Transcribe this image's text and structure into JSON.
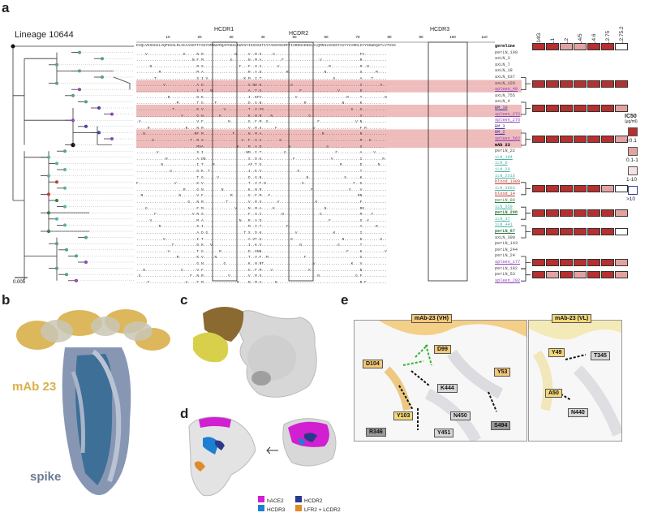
{
  "panels": {
    "a": "a",
    "b": "b",
    "c": "c",
    "d": "d",
    "e": "e"
  },
  "panel_a": {
    "lineage_title": "Lineage 10644",
    "cdr_labels": [
      "HCDR1",
      "HCDR2",
      "HCDR3"
    ],
    "scale_bar_label": "0.005",
    "germline_sequence": "EVQLVESGGGLVQPGGSLRLSCAASGFTFSSYSMNWVRQAPGKGLEWVSYISSSSSTIYYADSVKGRFTISRDNAKNSLYLQMNSLRAEDTAVYYCARDLGYYDGWGQGTLVTVSS",
    "clones": [
      {
        "name": "germline",
        "color": "#000000",
        "bold": true
      },
      {
        "name": "perLN_199",
        "color": "#444444"
      },
      {
        "name": "axLN_3",
        "color": "#444444"
      },
      {
        "name": "axLN_7",
        "color": "#444444"
      },
      {
        "name": "axLN_18",
        "color": "#444444"
      },
      {
        "name": "axLN_637",
        "color": "#444444"
      },
      {
        "name": "axLN_120",
        "color": "#444444"
      },
      {
        "name": "spleen_49",
        "color": "#8a3fb8"
      },
      {
        "name": "axLN_755",
        "color": "#444444"
      },
      {
        "name": "axLN_4",
        "color": "#444444"
      },
      {
        "name": "BM_10",
        "color": "#3a3aa0"
      },
      {
        "name": "spleen_272",
        "color": "#8a3fb8"
      },
      {
        "name": "spleen_276",
        "color": "#8a3fb8"
      },
      {
        "name": "BM_3",
        "color": "#3a3aa0"
      },
      {
        "name": "BM_2",
        "color": "#3a3aa0"
      },
      {
        "name": "spleen_562",
        "color": "#8a3fb8"
      },
      {
        "name": "mAb 23",
        "color": "#000000",
        "bold": true
      },
      {
        "name": "perLN_22",
        "color": "#444444"
      },
      {
        "name": "iLN_194",
        "color": "#4fb3a3"
      },
      {
        "name": "iLN_6",
        "color": "#4fb3a3"
      },
      {
        "name": "iLN_20",
        "color": "#4fb3a3"
      },
      {
        "name": "iLN_2316",
        "color": "#4fb3a3"
      },
      {
        "name": "blood_1089",
        "color": "#c0392b"
      },
      {
        "name": "iLN_3683",
        "color": "#4fb3a3"
      },
      {
        "name": "blood_14",
        "color": "#c0392b"
      },
      {
        "name": "perLN_80",
        "color": "#2c7a3c"
      },
      {
        "name": "iLN_659",
        "color": "#4fb3a3"
      },
      {
        "name": "perLN_298",
        "color": "#2c7a3c",
        "bold": true
      },
      {
        "name": "iLN_37",
        "color": "#4fb3a3"
      },
      {
        "name": "iLN_441",
        "color": "#4fb3a3"
      },
      {
        "name": "perLN_67",
        "color": "#2c7a3c",
        "bold": true
      },
      {
        "name": "axLN_300",
        "color": "#444444"
      },
      {
        "name": "perLN_143",
        "color": "#444444"
      },
      {
        "name": "perLN_244",
        "color": "#444444"
      },
      {
        "name": "perLN_24",
        "color": "#444444"
      },
      {
        "name": "spleen_177",
        "color": "#8a3fb8"
      },
      {
        "name": "perLN_182",
        "color": "#444444"
      },
      {
        "name": "perLN_53",
        "color": "#444444"
      },
      {
        "name": "spleen_292",
        "color": "#8a3fb8"
      }
    ],
    "variant_headers": [
      "D614G",
      "BA.1",
      "BA.2",
      "BA.4/5",
      "BA.4.6",
      "BA.2.75",
      "BA.2.75.2"
    ],
    "heatmap_rows": [
      {
        "name": "germline",
        "levels": [
          0,
          0,
          1,
          1,
          0,
          0,
          3
        ]
      },
      {
        "name": "axLN_120",
        "levels": [
          0,
          0,
          0,
          0,
          0,
          0,
          0
        ]
      },
      {
        "name": "BM_10",
        "levels": [
          0,
          0,
          0,
          0,
          0,
          0,
          1
        ]
      },
      {
        "name": "spleen_562",
        "levels": [
          0,
          0,
          0,
          0,
          0,
          0,
          1
        ]
      },
      {
        "name": "iLN_3683",
        "levels": [
          0,
          0,
          0,
          0,
          0,
          1,
          3
        ]
      },
      {
        "name": "perLN_298",
        "levels": [
          0,
          0,
          0,
          0,
          0,
          0,
          1
        ]
      },
      {
        "name": "perLN_67",
        "levels": [
          0,
          0,
          0,
          0,
          0,
          0,
          3
        ]
      },
      {
        "name": "spleen_177",
        "levels": [
          0,
          0,
          0,
          0,
          0,
          0,
          1
        ]
      },
      {
        "name": "perLN_53",
        "levels": [
          0,
          1,
          0,
          1,
          0,
          0,
          1
        ]
      }
    ],
    "ic50_legend": {
      "title": "IC50",
      "unit": "(µg/ml)",
      "items": [
        {
          "label": "<0.1",
          "color": "#b5302f"
        },
        {
          "label": "0.1-1",
          "color": "#e2a2a2"
        },
        {
          "label": "1-10",
          "color": "#f7e1e3"
        },
        {
          "label": ">10",
          "color": "#ffffff"
        }
      ]
    }
  },
  "panel_b": {
    "mab_label": "mAb 23",
    "spike_label": "spike"
  },
  "panel_d": {
    "legend": [
      {
        "label": "hACE2",
        "color": "#d11fd1"
      },
      {
        "label": "HCDR2",
        "color": "#2a3a8a"
      },
      {
        "label": "HCDR3",
        "color": "#1e7fd1"
      },
      {
        "label": "LFR2 + LCDR2",
        "color": "#e08a2a"
      }
    ]
  },
  "panel_e": {
    "vh_title": "mAb-23 (VH)",
    "vl_title": "mAb-23 (VL)",
    "vh_labels": {
      "D99": "D99",
      "D104": "D104",
      "Y53": "Y53",
      "K444": "K444",
      "Y103": "Y103",
      "N450": "N450",
      "R346": "R346",
      "Y451": "Y451",
      "S494": "S494"
    },
    "vl_labels": {
      "Y49": "Y49",
      "T345": "T345",
      "A50": "A50",
      "N440": "N440"
    }
  }
}
